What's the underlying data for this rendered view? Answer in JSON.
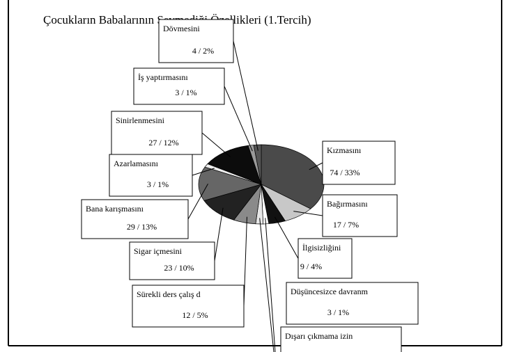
{
  "chart_data": {
    "type": "pie",
    "title": "Çocukların Babalarının Sevmediği Özellikleri (1.Tercih)",
    "categories": [
      "Kızmasını",
      "Bağırmasını",
      "İlgisizliğini",
      "Düşüncesizce davranm",
      "Dışarı çıkmama izin",
      "Sürekli ders çalış d",
      "Sigar içmesini",
      "Bana  karışmasını",
      "Azarlamasını",
      "Sinirlenmesini",
      "İş yaptırmasını",
      "Dövmesini"
    ],
    "values": [
      74,
      17,
      9,
      3,
      4,
      12,
      23,
      29,
      3,
      27,
      3,
      4
    ],
    "value_labels": [
      "74 / 33%",
      "17 / 7%",
      "9 / 4%",
      "3 / 1%",
      null,
      "12 / 5%",
      "23 / 10%",
      "29 / 13%",
      "3 / 1%",
      "27 / 12%",
      "3 / 1%",
      "4 / 2%"
    ],
    "colors": [
      "#4a4a4a",
      "#c8c8c8",
      "#111111",
      "#ffffff",
      "#e6e6e6",
      "#8a8a8a",
      "#222222",
      "#666666",
      "#eeeeee",
      "#0c0c0c",
      "#9a9a9a",
      "#555555"
    ]
  }
}
